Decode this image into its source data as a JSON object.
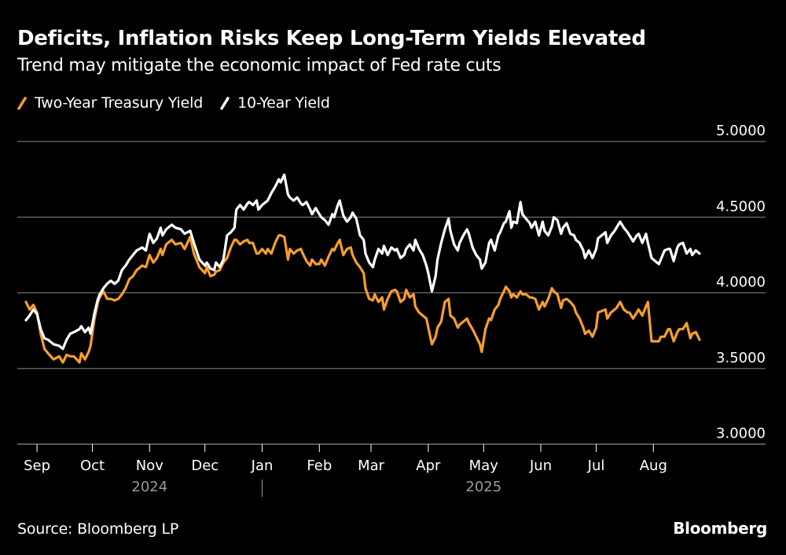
{
  "header": {
    "title": "Deficits, Inflation Risks Keep Long-Term Yields Elevated",
    "subtitle": "Trend may mitigate the economic impact of Fed rate cuts"
  },
  "footer": {
    "source": "Source: Bloomberg LP",
    "brand": "Bloomberg"
  },
  "chart_data": {
    "type": "line",
    "title": "Deficits, Inflation Risks Keep Long-Term Yields Elevated",
    "subtitle": "Trend may mitigate the economic impact of Fed rate cuts",
    "xlabel": "",
    "ylabel": "",
    "x_range": [
      "2024-08-26",
      "2025-08-26"
    ],
    "ylim": [
      3.0,
      5.0
    ],
    "yticks": [
      3.0,
      3.5,
      4.0,
      4.5,
      5.0
    ],
    "ytick_labels": [
      "3.0000",
      "3.5000",
      "4.0000",
      "4.5000",
      "5.0000"
    ],
    "y_axis_side": "right",
    "grid": true,
    "legend_placement": "top-left",
    "xticks": [
      {
        "date": "2024-09-01",
        "label": "Sep"
      },
      {
        "date": "2024-10-01",
        "label": "Oct"
      },
      {
        "date": "2024-11-01",
        "label": "Nov"
      },
      {
        "date": "2024-12-01",
        "label": "Dec"
      },
      {
        "date": "2025-01-01",
        "label": "Jan"
      },
      {
        "date": "2025-02-01",
        "label": "Feb"
      },
      {
        "date": "2025-03-01",
        "label": "Mar"
      },
      {
        "date": "2025-04-01",
        "label": "Apr"
      },
      {
        "date": "2025-05-01",
        "label": "May"
      },
      {
        "date": "2025-06-01",
        "label": "Jun"
      },
      {
        "date": "2025-07-01",
        "label": "Jul"
      },
      {
        "date": "2025-08-01",
        "label": "Aug"
      }
    ],
    "year_labels": [
      {
        "label": "2024",
        "center_date": "2024-11-01"
      },
      {
        "label": "2025",
        "center_date": "2025-05-01"
      }
    ],
    "year_divider_date": "2025-01-01",
    "series": [
      {
        "name": "Two-Year Treasury Yield",
        "color": "#f79e2d",
        "values": [
          3.94,
          3.89,
          3.92,
          3.87,
          3.73,
          3.63,
          3.6,
          3.56,
          3.58,
          3.54,
          3.59,
          3.58,
          3.58,
          3.54,
          3.6,
          3.56,
          3.61,
          3.65,
          3.82,
          3.94,
          3.97,
          4.01,
          3.96,
          3.96,
          3.95,
          3.96,
          3.99,
          4.03,
          4.09,
          4.11,
          4.15,
          4.18,
          4.17,
          4.25,
          4.2,
          4.23,
          4.29,
          4.25,
          4.32,
          4.35,
          4.32,
          4.33,
          4.29,
          4.37,
          4.26,
          4.17,
          4.13,
          4.17,
          4.11,
          4.12,
          4.14,
          4.15,
          4.2,
          4.23,
          4.3,
          4.35,
          4.35,
          4.32,
          4.34,
          4.35,
          4.33,
          4.33,
          4.26,
          4.26,
          4.29,
          4.26,
          4.29,
          4.26,
          4.33,
          4.38,
          4.38,
          4.37,
          4.22,
          4.29,
          4.26,
          4.28,
          4.29,
          4.26,
          4.21,
          4.18,
          4.22,
          4.19,
          4.19,
          4.22,
          4.18,
          4.24,
          4.29,
          4.28,
          4.33,
          4.35,
          4.25,
          4.29,
          4.3,
          4.25,
          4.2,
          4.17,
          4.13,
          4.03,
          3.96,
          3.95,
          3.99,
          3.94,
          3.97,
          3.89,
          3.96,
          4.01,
          4.02,
          4.01,
          3.94,
          3.96,
          4.02,
          3.97,
          3.99,
          3.91,
          3.87,
          3.85,
          3.83,
          3.77,
          3.66,
          3.71,
          3.77,
          3.81,
          3.94,
          3.96,
          3.85,
          3.83,
          3.77,
          3.79,
          3.81,
          3.83,
          3.8,
          3.76,
          3.71,
          3.66,
          3.61,
          3.76,
          3.83,
          3.82,
          3.89,
          3.92,
          3.96,
          4.01,
          4.04,
          4.01,
          3.97,
          3.99,
          3.97,
          4.01,
          3.99,
          3.99,
          3.97,
          3.97,
          3.96,
          3.89,
          3.94,
          3.91,
          3.96,
          4.03,
          4.01,
          3.99,
          3.9,
          3.95,
          3.96,
          3.94,
          3.91,
          3.87,
          3.83,
          3.77,
          3.73,
          3.75,
          3.71,
          3.77,
          3.87,
          3.88,
          3.89,
          3.83,
          3.87,
          3.89,
          3.9,
          3.94,
          3.89,
          3.87,
          3.87,
          3.83,
          3.87,
          3.89,
          3.85,
          3.91,
          3.94,
          3.68,
          3.68,
          3.68,
          3.71,
          3.71,
          3.76,
          3.76,
          3.68,
          3.74,
          3.76,
          3.76,
          3.8,
          3.7,
          3.73,
          3.74,
          3.69
        ]
      },
      {
        "name": "10-Year Yield",
        "color": "#ffffff",
        "values": [
          3.82,
          3.85,
          3.89,
          3.86,
          3.76,
          3.7,
          3.69,
          3.66,
          3.65,
          3.63,
          3.69,
          3.73,
          3.74,
          3.76,
          3.78,
          3.74,
          3.77,
          3.73,
          3.86,
          3.96,
          3.99,
          4.03,
          4.06,
          4.08,
          4.06,
          4.08,
          4.15,
          4.18,
          4.22,
          4.25,
          4.28,
          4.3,
          4.28,
          4.39,
          4.33,
          4.36,
          4.43,
          4.38,
          4.42,
          4.45,
          4.43,
          4.42,
          4.39,
          4.41,
          4.33,
          4.22,
          4.18,
          4.2,
          4.16,
          4.15,
          4.2,
          4.17,
          4.22,
          4.38,
          4.4,
          4.43,
          4.55,
          4.58,
          4.55,
          4.59,
          4.6,
          4.58,
          4.61,
          4.55,
          4.58,
          4.6,
          4.61,
          4.66,
          4.7,
          4.75,
          4.73,
          4.78,
          4.65,
          4.63,
          4.61,
          4.63,
          4.59,
          4.58,
          4.6,
          4.55,
          4.52,
          4.56,
          4.52,
          4.5,
          4.48,
          4.45,
          4.52,
          4.5,
          4.58,
          4.61,
          4.51,
          4.47,
          4.5,
          4.53,
          4.49,
          4.38,
          4.35,
          4.26,
          4.2,
          4.17,
          4.22,
          4.29,
          4.26,
          4.31,
          4.25,
          4.3,
          4.28,
          4.29,
          4.23,
          4.25,
          4.29,
          4.32,
          4.28,
          4.35,
          4.29,
          4.25,
          4.18,
          4.13,
          4.01,
          4.11,
          4.22,
          4.33,
          4.42,
          4.49,
          4.41,
          4.32,
          4.28,
          4.33,
          4.38,
          4.42,
          4.39,
          4.3,
          4.25,
          4.22,
          4.16,
          4.2,
          4.33,
          4.35,
          4.28,
          4.38,
          4.4,
          4.46,
          4.47,
          4.54,
          4.43,
          4.47,
          4.46,
          4.6,
          4.52,
          4.49,
          4.46,
          4.43,
          4.47,
          4.38,
          4.47,
          4.41,
          4.38,
          4.44,
          4.5,
          4.48,
          4.39,
          4.43,
          4.46,
          4.39,
          4.38,
          4.35,
          4.33,
          4.28,
          4.23,
          4.28,
          4.23,
          4.29,
          4.36,
          4.38,
          4.4,
          4.33,
          4.38,
          4.41,
          4.43,
          4.47,
          4.43,
          4.4,
          4.38,
          4.34,
          4.38,
          4.39,
          4.33,
          4.39,
          4.33,
          4.23,
          4.21,
          4.19,
          4.22,
          4.28,
          4.29,
          4.29,
          4.21,
          4.3,
          4.32,
          4.33,
          4.26,
          4.29,
          4.25,
          4.28,
          4.26
        ]
      }
    ],
    "dates": [
      "2024-08-26",
      "2024-08-28",
      "2024-08-30",
      "2024-09-01",
      "2024-09-03",
      "2024-09-05",
      "2024-09-07",
      "2024-09-10",
      "2024-09-13",
      "2024-09-15",
      "2024-09-17",
      "2024-09-19",
      "2024-09-21",
      "2024-09-24",
      "2024-09-25",
      "2024-09-27",
      "2024-09-29",
      "2024-09-30",
      "2024-10-02",
      "2024-10-04",
      "2024-10-05",
      "2024-10-07",
      "2024-10-09",
      "2024-10-11",
      "2024-10-13",
      "2024-10-15",
      "2024-10-17",
      "2024-10-19",
      "2024-10-21",
      "2024-10-23",
      "2024-10-25",
      "2024-10-28",
      "2024-10-30",
      "2024-11-01",
      "2024-11-03",
      "2024-11-05",
      "2024-11-07",
      "2024-11-08",
      "2024-11-10",
      "2024-11-13",
      "2024-11-15",
      "2024-11-18",
      "2024-11-20",
      "2024-11-23",
      "2024-11-25",
      "2024-11-28",
      "2024-12-01",
      "2024-12-02",
      "2024-12-04",
      "2024-12-06",
      "2024-12-07",
      "2024-12-09",
      "2024-12-11",
      "2024-12-13",
      "2024-12-15",
      "2024-12-17",
      "2024-12-18",
      "2024-12-20",
      "2024-12-22",
      "2024-12-24",
      "2024-12-25",
      "2024-12-27",
      "2024-12-29",
      "2024-12-30",
      "2025-01-01",
      "2025-01-03",
      "2025-01-04",
      "2025-01-06",
      "2025-01-08",
      "2025-01-10",
      "2025-01-11",
      "2025-01-13",
      "2025-01-15",
      "2025-01-16",
      "2025-01-18",
      "2025-01-20",
      "2025-01-22",
      "2025-01-23",
      "2025-01-25",
      "2025-01-27",
      "2025-01-28",
      "2025-01-30",
      "2025-02-01",
      "2025-02-02",
      "2025-02-04",
      "2025-02-06",
      "2025-02-08",
      "2025-02-09",
      "2025-02-11",
      "2025-02-12",
      "2025-02-14",
      "2025-02-16",
      "2025-02-18",
      "2025-02-19",
      "2025-02-21",
      "2025-02-23",
      "2025-02-25",
      "2025-02-26",
      "2025-02-28",
      "2025-03-02",
      "2025-03-03",
      "2025-03-05",
      "2025-03-07",
      "2025-03-08",
      "2025-03-10",
      "2025-03-12",
      "2025-03-14",
      "2025-03-15",
      "2025-03-17",
      "2025-03-19",
      "2025-03-20",
      "2025-03-22",
      "2025-03-24",
      "2025-03-25",
      "2025-03-27",
      "2025-03-29",
      "2025-03-31",
      "2025-04-01",
      "2025-04-03",
      "2025-04-05",
      "2025-04-06",
      "2025-04-08",
      "2025-04-10",
      "2025-04-12",
      "2025-04-13",
      "2025-04-15",
      "2025-04-17",
      "2025-04-18",
      "2025-04-20",
      "2025-04-22",
      "2025-04-23",
      "2025-04-25",
      "2025-04-27",
      "2025-04-29",
      "2025-04-30",
      "2025-05-02",
      "2025-05-04",
      "2025-05-05",
      "2025-05-07",
      "2025-05-09",
      "2025-05-10",
      "2025-05-12",
      "2025-05-13",
      "2025-05-15",
      "2025-05-16",
      "2025-05-17",
      "2025-05-19",
      "2025-05-21",
      "2025-05-22",
      "2025-05-24",
      "2025-05-26",
      "2025-05-27",
      "2025-05-29",
      "2025-05-31",
      "2025-06-02",
      "2025-06-03",
      "2025-06-05",
      "2025-06-07",
      "2025-06-08",
      "2025-06-10",
      "2025-06-12",
      "2025-06-13",
      "2025-06-15",
      "2025-06-17",
      "2025-06-19",
      "2025-06-20",
      "2025-06-22",
      "2025-06-24",
      "2025-06-25",
      "2025-06-27",
      "2025-06-29",
      "2025-07-01",
      "2025-07-02",
      "2025-07-04",
      "2025-07-06",
      "2025-07-07",
      "2025-07-09",
      "2025-07-11",
      "2025-07-12",
      "2025-07-14",
      "2025-07-16",
      "2025-07-18",
      "2025-07-19",
      "2025-07-21",
      "2025-07-23",
      "2025-07-24",
      "2025-07-26",
      "2025-07-28",
      "2025-07-29",
      "2025-07-31",
      "2025-08-02",
      "2025-08-04",
      "2025-08-05",
      "2025-08-07",
      "2025-08-09",
      "2025-08-10",
      "2025-08-12",
      "2025-08-14",
      "2025-08-15",
      "2025-08-17",
      "2025-08-19",
      "2025-08-21",
      "2025-08-22",
      "2025-08-24",
      "2025-08-26"
    ]
  }
}
